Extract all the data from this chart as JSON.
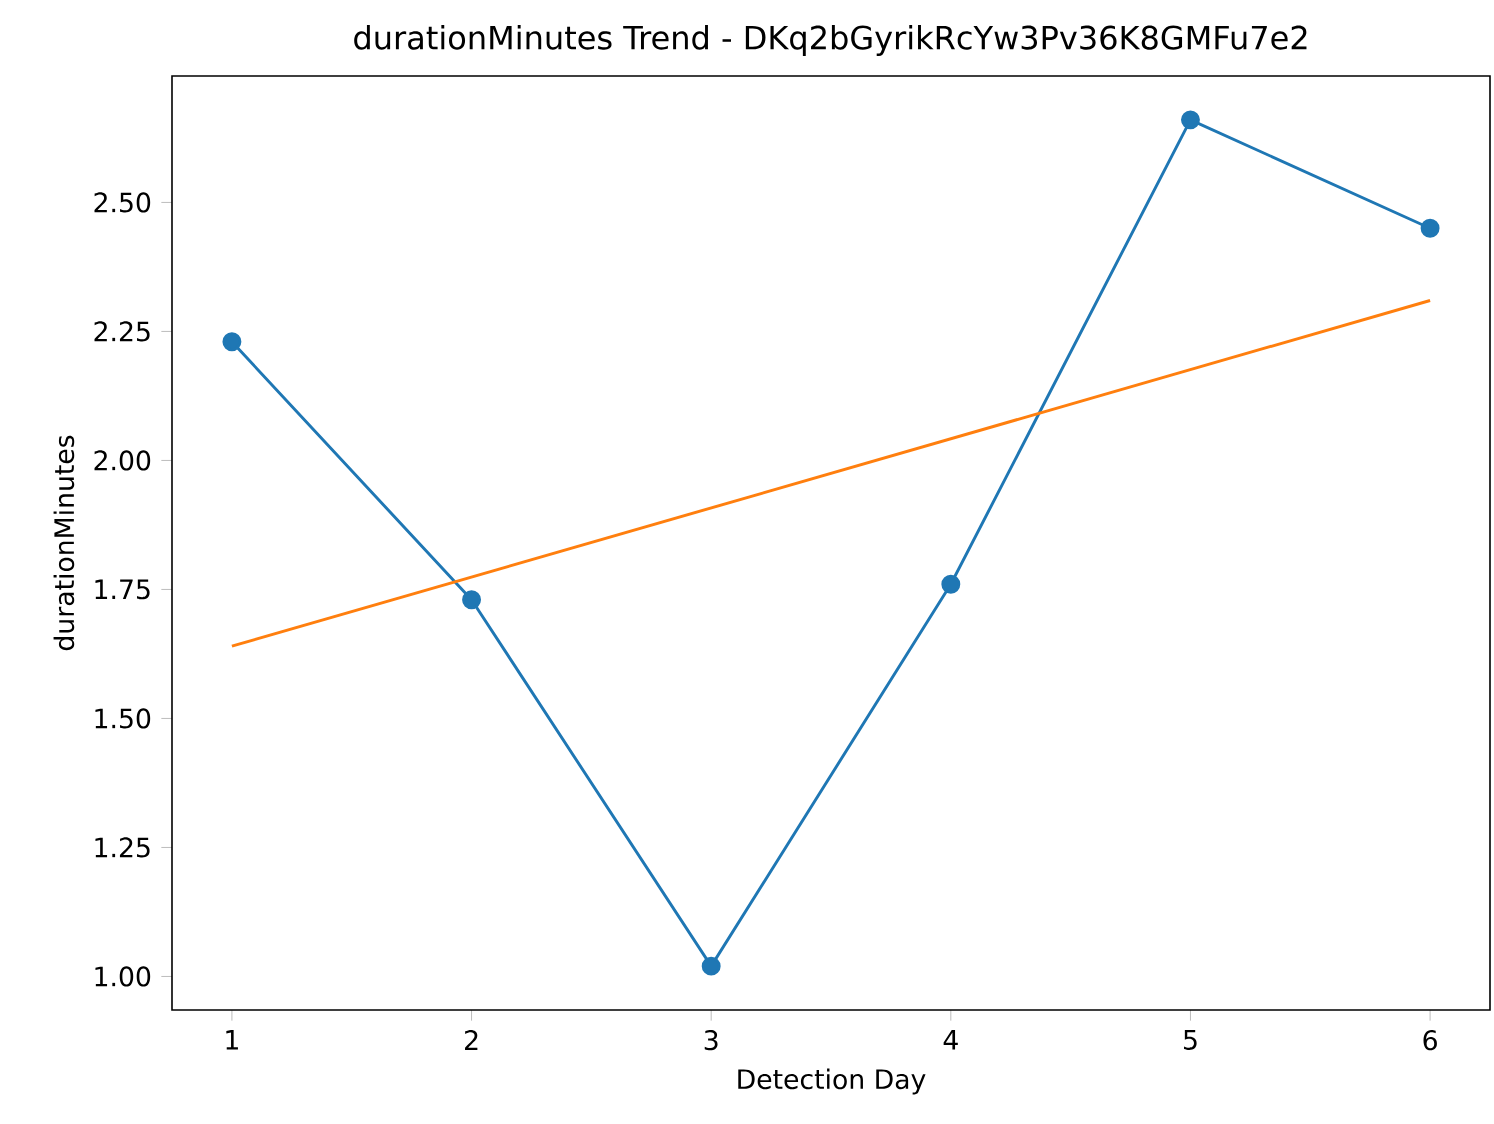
{
  "chart_data": {
    "type": "line",
    "title": "durationMinutes Trend - DKq2bGyrikRcYw3Pv36K8GMFu7e2",
    "xlabel": "Detection Day",
    "ylabel": "durationMinutes",
    "x": [
      1,
      2,
      3,
      4,
      5,
      6
    ],
    "series": [
      {
        "color": "#1f77b4",
        "marker": "circle",
        "values": [
          2.23,
          1.73,
          1.02,
          1.76,
          2.66,
          2.45
        ]
      },
      {
        "color": "#ff7f0e",
        "marker": "none",
        "x": [
          1,
          6
        ],
        "values": [
          1.64,
          2.31
        ]
      }
    ],
    "xlim": [
      0.75,
      6.25
    ],
    "ylim": [
      0.935,
      2.745
    ],
    "xticks": [
      1,
      2,
      3,
      4,
      5,
      6
    ],
    "yticks": [
      {
        "value": 1.0,
        "label": "1.00"
      },
      {
        "value": 1.25,
        "label": "1.25"
      },
      {
        "value": 1.5,
        "label": "1.50"
      },
      {
        "value": 1.75,
        "label": "1.75"
      },
      {
        "value": 2.0,
        "label": "2.00"
      },
      {
        "value": 2.25,
        "label": "2.25"
      },
      {
        "value": 2.5,
        "label": "2.50"
      }
    ],
    "line_style": "solid"
  }
}
